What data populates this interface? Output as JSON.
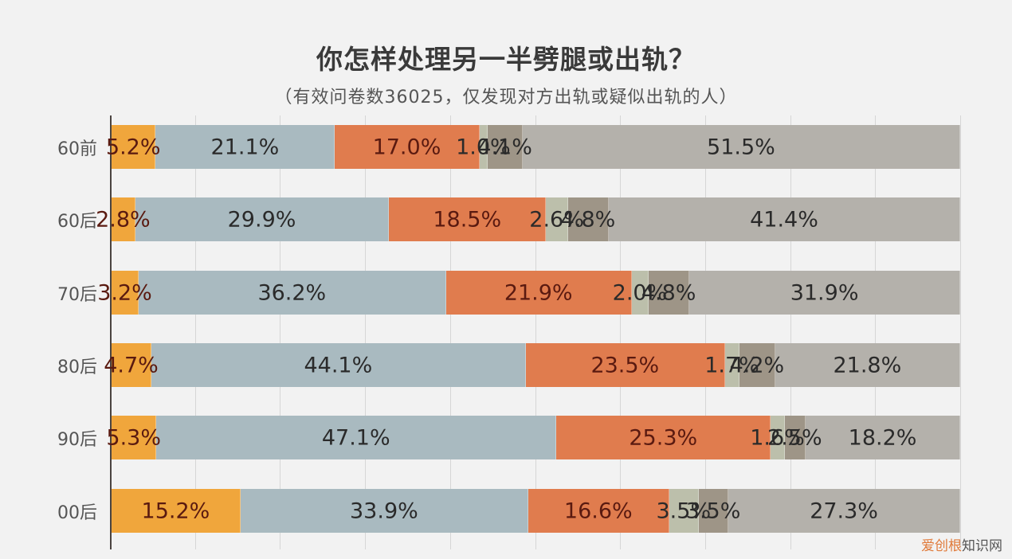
{
  "title": "你怎样处理另一半劈腿或出轨？",
  "subtitle": "（有效问卷数36025，仅发现对方出轨或疑似出轨的人）",
  "watermark": {
    "part1": "爱创根",
    "part2": "知识网"
  },
  "colors": [
    "#f0a63c",
    "#a9bac0",
    "#e07c4e",
    "#bcbfab",
    "#9e9587",
    "#b4b1ab"
  ],
  "rows": [
    {
      "label": "60前",
      "segments": [
        {
          "value": 5.2,
          "text": "5.2%"
        },
        {
          "value": 21.1,
          "text": "21.1%"
        },
        {
          "value": 17.0,
          "text": "17.0%"
        },
        {
          "value": 1.0,
          "text": "1.0%"
        },
        {
          "value": 4.1,
          "text": "4.1%"
        },
        {
          "value": 51.5,
          "text": "51.5%"
        }
      ]
    },
    {
      "label": "60后",
      "segments": [
        {
          "value": 2.8,
          "text": "2.8%"
        },
        {
          "value": 29.9,
          "text": "29.9%"
        },
        {
          "value": 18.5,
          "text": "18.5%"
        },
        {
          "value": 2.6,
          "text": "2.6%"
        },
        {
          "value": 4.8,
          "text": "4.8%"
        },
        {
          "value": 41.4,
          "text": "41.4%"
        }
      ]
    },
    {
      "label": "70后",
      "segments": [
        {
          "value": 3.2,
          "text": "3.2%"
        },
        {
          "value": 36.2,
          "text": "36.2%"
        },
        {
          "value": 21.9,
          "text": "21.9%"
        },
        {
          "value": 2.0,
          "text": "2.0%"
        },
        {
          "value": 4.8,
          "text": "4.8%"
        },
        {
          "value": 31.9,
          "text": "31.9%"
        }
      ]
    },
    {
      "label": "80后",
      "segments": [
        {
          "value": 4.7,
          "text": "4.7%"
        },
        {
          "value": 44.1,
          "text": "44.1%"
        },
        {
          "value": 23.5,
          "text": "23.5%"
        },
        {
          "value": 1.7,
          "text": "1.7%"
        },
        {
          "value": 4.2,
          "text": "4.2%"
        },
        {
          "value": 21.8,
          "text": "21.8%"
        }
      ]
    },
    {
      "label": "90后",
      "segments": [
        {
          "value": 5.3,
          "text": "5.3%"
        },
        {
          "value": 47.1,
          "text": "47.1%"
        },
        {
          "value": 25.3,
          "text": "25.3%"
        },
        {
          "value": 1.6,
          "text": "1.6%"
        },
        {
          "value": 2.5,
          "text": "2.5%"
        },
        {
          "value": 18.2,
          "text": "18.2%"
        }
      ]
    },
    {
      "label": "00后",
      "segments": [
        {
          "value": 15.2,
          "text": "15.2%"
        },
        {
          "value": 33.9,
          "text": "33.9%"
        },
        {
          "value": 16.6,
          "text": "16.6%"
        },
        {
          "value": 3.5,
          "text": "3.5%"
        },
        {
          "value": 3.5,
          "text": "3.5%"
        },
        {
          "value": 27.3,
          "text": "27.3%"
        }
      ]
    }
  ],
  "chart_data": {
    "type": "bar",
    "orientation": "horizontal",
    "stacked": true,
    "percent_stacked": true,
    "title": "你怎样处理另一半劈腿或出轨？",
    "subtitle": "（有效问卷数36025，仅发现对方出轨或疑似出轨的人）",
    "xlabel": "",
    "ylabel": "",
    "xlim": [
      0,
      100
    ],
    "grid": true,
    "gridline_interval": 10,
    "legend": null,
    "categories": [
      "60前",
      "60后",
      "70后",
      "80后",
      "90后",
      "00后"
    ],
    "series": [
      {
        "name": "Series 1",
        "color": "#f0a63c",
        "values": [
          5.2,
          2.8,
          3.2,
          4.7,
          5.3,
          15.2
        ]
      },
      {
        "name": "Series 2",
        "color": "#a9bac0",
        "values": [
          21.1,
          29.9,
          36.2,
          44.1,
          47.1,
          33.9
        ]
      },
      {
        "name": "Series 3",
        "color": "#e07c4e",
        "values": [
          17.0,
          18.5,
          21.9,
          23.5,
          25.3,
          16.6
        ]
      },
      {
        "name": "Series 4",
        "color": "#bcbfab",
        "values": [
          1.0,
          2.6,
          2.0,
          1.7,
          1.6,
          3.5
        ]
      },
      {
        "name": "Series 5",
        "color": "#9e9587",
        "values": [
          4.1,
          4.8,
          4.8,
          4.2,
          2.5,
          3.5
        ]
      },
      {
        "name": "Series 6",
        "color": "#b4b1ab",
        "values": [
          51.5,
          41.4,
          31.9,
          21.8,
          18.2,
          27.3
        ]
      }
    ]
  }
}
